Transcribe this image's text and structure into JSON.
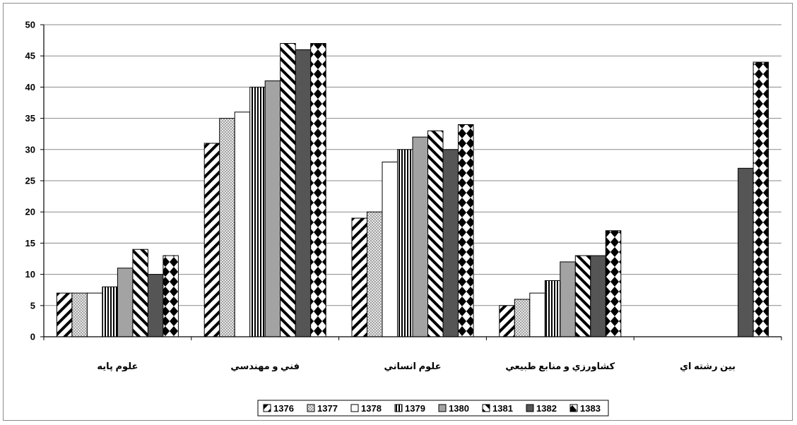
{
  "chart_data": {
    "type": "bar",
    "title": "",
    "xlabel": "",
    "ylabel": "",
    "ylim": [
      0,
      50
    ],
    "yticks": [
      0,
      5,
      10,
      15,
      20,
      25,
      30,
      35,
      40,
      45,
      50
    ],
    "grid": true,
    "legend_position": "bottom",
    "categories": [
      "علوم پايه",
      "فني و مهندسي",
      "علوم انساني",
      "كشاورزي و منابع طبيعي",
      "بين رشته اي"
    ],
    "series": [
      {
        "name": "1376",
        "values": [
          7,
          31,
          19,
          5,
          0
        ]
      },
      {
        "name": "1377",
        "values": [
          7,
          35,
          20,
          6,
          0
        ]
      },
      {
        "name": "1378",
        "values": [
          7,
          36,
          28,
          7,
          0
        ]
      },
      {
        "name": "1379",
        "values": [
          8,
          40,
          30,
          9,
          0
        ]
      },
      {
        "name": "1380",
        "values": [
          11,
          41,
          32,
          12,
          0
        ]
      },
      {
        "name": "1381",
        "values": [
          14,
          47,
          33,
          13,
          0
        ]
      },
      {
        "name": "1382",
        "values": [
          10,
          46,
          30,
          13,
          27
        ]
      },
      {
        "name": "1383",
        "values": [
          13,
          47,
          34,
          17,
          44
        ]
      }
    ]
  },
  "series_styles": [
    {
      "pattern": "diag-bold",
      "color": "#000000"
    },
    {
      "pattern": "dots",
      "color": "#b0b0b0"
    },
    {
      "pattern": "white",
      "color": "#ffffff"
    },
    {
      "pattern": "vlines",
      "color": "#000000"
    },
    {
      "pattern": "gray",
      "color": "#a0a0a0"
    },
    {
      "pattern": "diag-down",
      "color": "#000000"
    },
    {
      "pattern": "solid-dark",
      "color": "#555555"
    },
    {
      "pattern": "diamonds",
      "color": "#000000"
    }
  ]
}
